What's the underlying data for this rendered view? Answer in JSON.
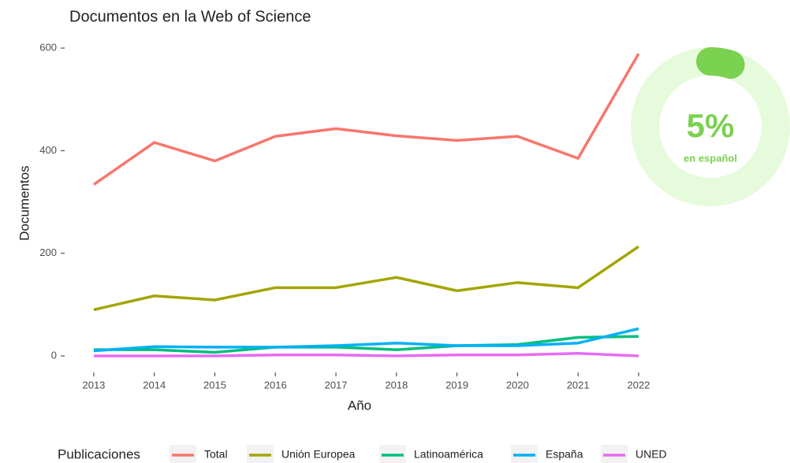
{
  "chart_data": {
    "type": "line",
    "title": "Documentos en la Web of Science",
    "x_label": "Año",
    "y_label": "Documentos",
    "x": [
      2013,
      2014,
      2015,
      2016,
      2017,
      2018,
      2019,
      2020,
      2021,
      2022
    ],
    "xlim": [
      2012.55,
      2022.45
    ],
    "xticks": [
      2013,
      2014,
      2015,
      2016,
      2017,
      2018,
      2019,
      2020,
      2021,
      2022
    ],
    "ylim": [
      -29,
      618
    ],
    "yticks": [
      0,
      200,
      400,
      600
    ],
    "grid": false,
    "legend_title": "Publicaciones",
    "legend": "bottom",
    "series": [
      {
        "name": "Total",
        "color": "#F8766D",
        "values": [
          334,
          416,
          380,
          428,
          443,
          429,
          420,
          428,
          385,
          589
        ]
      },
      {
        "name": "Unión Europea",
        "color": "#A3A500",
        "values": [
          90,
          117,
          109,
          133,
          133,
          153,
          127,
          143,
          133,
          213
        ]
      },
      {
        "name": "Latinoamérica",
        "color": "#00BF7D",
        "values": [
          12,
          12,
          7,
          17,
          17,
          12,
          20,
          22,
          36,
          38
        ]
      },
      {
        "name": "España",
        "color": "#00B0F6",
        "values": [
          10,
          18,
          17,
          17,
          20,
          25,
          20,
          20,
          25,
          53
        ]
      },
      {
        "name": "UNED",
        "color": "#E76BF3",
        "values": [
          0,
          0,
          0,
          2,
          2,
          0,
          2,
          2,
          5,
          0
        ]
      }
    ],
    "donut": {
      "value": 5,
      "value_label": "5%",
      "label": "en español",
      "color": "#7BD150",
      "track_color": "#E6FADC"
    }
  }
}
